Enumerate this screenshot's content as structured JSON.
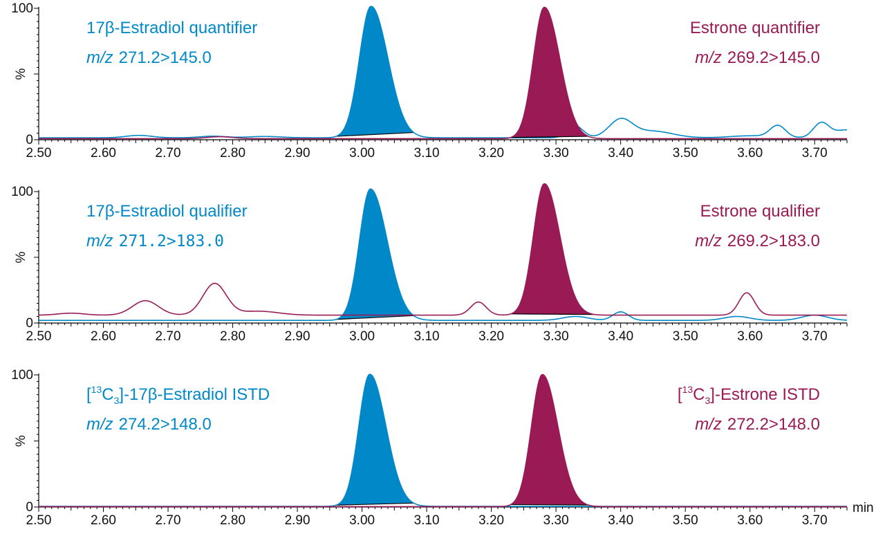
{
  "chart_data": {
    "type": "line",
    "x_unit": "min",
    "x_range": [
      2.5,
      3.75
    ],
    "x_ticks": [
      "2.50",
      "2.60",
      "2.70",
      "2.80",
      "2.90",
      "3.00",
      "3.10",
      "3.20",
      "3.30",
      "3.40",
      "3.50",
      "3.60",
      "3.70"
    ],
    "y_range": [
      0,
      100
    ],
    "y_ticks": [
      "100",
      "0"
    ],
    "y_label": "%",
    "colors": {
      "estradiol": "#0088c9",
      "estrone": "#991a55"
    },
    "panels": [
      {
        "left_title": "17β-Estradiol quantifier",
        "left_mz_prefix": "m/z",
        "left_mz_value": "271.2>145.0",
        "right_title": "Estrone quantifier",
        "right_mz_prefix": "m/z",
        "right_mz_value": "269.2>145.0",
        "series": [
          {
            "name": "17β-Estradiol",
            "color": "#0088c9",
            "baseline": 1.5,
            "filled_peak": {
              "rt": 3.014,
              "height": 100,
              "sigma_left": 0.018,
              "sigma_right": 0.026,
              "fill_from": 2.96,
              "fill_to": 3.08
            },
            "minor_peaks": [
              {
                "rt": 2.655,
                "height": 1.8,
                "sigma": 0.02
              },
              {
                "rt": 2.77,
                "height": 1.2,
                "sigma": 0.02
              },
              {
                "rt": 2.85,
                "height": 1.0,
                "sigma": 0.025
              },
              {
                "rt": 3.33,
                "height": 9,
                "sigma": 0.012
              },
              {
                "rt": 3.4,
                "height": 13.5,
                "sigma": 0.018
              },
              {
                "rt": 3.45,
                "height": 5,
                "sigma": 0.03
              },
              {
                "rt": 3.6,
                "height": 1.5,
                "sigma": 0.03
              },
              {
                "rt": 3.643,
                "height": 9,
                "sigma": 0.012
              },
              {
                "rt": 3.71,
                "height": 11,
                "sigma": 0.012
              },
              {
                "rt": 3.75,
                "height": 6,
                "sigma": 0.02
              }
            ]
          },
          {
            "name": "Estrone",
            "color": "#991a55",
            "baseline": 0.8,
            "filled_peak": {
              "rt": 3.282,
              "height": 100,
              "sigma_left": 0.017,
              "sigma_right": 0.024,
              "fill_from": 3.23,
              "fill_to": 3.35
            },
            "minor_peaks": [
              {
                "rt": 2.78,
                "height": 1.5,
                "sigma": 0.02
              }
            ]
          }
        ]
      },
      {
        "left_title": "17β-Estradiol qualifier",
        "left_mz_prefix": "m/z",
        "left_mz_value": "271.2>183.0",
        "right_title": "Estrone qualifier",
        "right_mz_prefix": "m/z",
        "right_mz_value": "269.2>183.0",
        "series": [
          {
            "name": "17β-Estradiol",
            "color": "#0088c9",
            "baseline": 2.0,
            "filled_peak": {
              "rt": 3.013,
              "height": 100,
              "sigma_left": 0.017,
              "sigma_right": 0.026,
              "fill_from": 2.96,
              "fill_to": 3.08
            },
            "minor_peaks": [
              {
                "rt": 3.33,
                "height": 3,
                "sigma": 0.02
              },
              {
                "rt": 3.4,
                "height": 6.5,
                "sigma": 0.012
              },
              {
                "rt": 3.58,
                "height": 3,
                "sigma": 0.02
              },
              {
                "rt": 3.7,
                "height": 4,
                "sigma": 0.02
              }
            ]
          },
          {
            "name": "Estrone",
            "color": "#991a55",
            "baseline": 6.0,
            "filled_peak": {
              "rt": 3.282,
              "height": 100,
              "sigma_left": 0.017,
              "sigma_right": 0.024,
              "fill_from": 3.23,
              "fill_to": 3.36
            },
            "minor_peaks": [
              {
                "rt": 2.55,
                "height": 1.5,
                "sigma": 0.02
              },
              {
                "rt": 2.665,
                "height": 11,
                "sigma": 0.02
              },
              {
                "rt": 2.772,
                "height": 24,
                "sigma": 0.018
              },
              {
                "rt": 2.84,
                "height": 3,
                "sigma": 0.03
              },
              {
                "rt": 3.18,
                "height": 10,
                "sigma": 0.012
              },
              {
                "rt": 3.595,
                "height": 17,
                "sigma": 0.012
              }
            ]
          }
        ]
      },
      {
        "left_title_pre": "[",
        "left_title_sup": "13",
        "left_title_core": "C",
        "left_title_sub": "3",
        "left_title_post": "]-17β-Estradiol ISTD",
        "left_mz_prefix": "m/z",
        "left_mz_value": "274.2>148.0",
        "right_title_pre": "[",
        "right_title_sup": "13",
        "right_title_core": "C",
        "right_title_sub": "3",
        "right_title_post": "]-Estrone ISTD",
        "right_mz_prefix": "m/z",
        "right_mz_value": "272.2>148.0",
        "series": [
          {
            "name": "[13C3]-17β-Estradiol",
            "color": "#0088c9",
            "baseline": 0.5,
            "filled_peak": {
              "rt": 3.012,
              "height": 100,
              "sigma_left": 0.017,
              "sigma_right": 0.025,
              "fill_from": 2.96,
              "fill_to": 3.08
            },
            "minor_peaks": []
          },
          {
            "name": "[13C3]-Estrone",
            "color": "#991a55",
            "baseline": 0.3,
            "filled_peak": {
              "rt": 3.279,
              "height": 100,
              "sigma_left": 0.017,
              "sigma_right": 0.024,
              "fill_from": 3.23,
              "fill_to": 3.35
            },
            "minor_peaks": []
          }
        ]
      }
    ]
  }
}
